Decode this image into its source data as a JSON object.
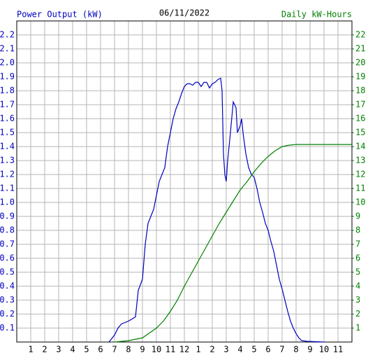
{
  "chart_data": {
    "type": "line",
    "title": "06/11/2022",
    "y_label": "Power Output (kW)",
    "y2_label": "Daily kW-Hours",
    "xlim": [
      0,
      24
    ],
    "xticks": [
      1,
      2,
      3,
      4,
      5,
      6,
      7,
      8,
      9,
      10,
      11,
      12,
      {
        "value": 13,
        "label": "1"
      },
      {
        "value": 14,
        "label": "2"
      },
      {
        "value": 15,
        "label": "3"
      },
      {
        "value": 16,
        "label": "4"
      },
      {
        "value": 17,
        "label": "5"
      },
      {
        "value": 18,
        "label": "6"
      },
      {
        "value": 19,
        "label": "7"
      },
      {
        "value": 20,
        "label": "8"
      },
      {
        "value": 21,
        "label": "9"
      },
      {
        "value": 22,
        "label": "10"
      },
      {
        "value": 23,
        "label": "11"
      }
    ],
    "ylim": [
      0,
      2.3
    ],
    "yticks": [
      0.1,
      0.2,
      0.3,
      0.4,
      0.5,
      0.6,
      0.7,
      0.8,
      0.9,
      {
        "value": 1,
        "label": "1.0"
      },
      1.1,
      1.2,
      1.3,
      1.4,
      1.5,
      1.6,
      1.7,
      1.8,
      1.9,
      {
        "value": 2,
        "label": "2.0"
      },
      2.1,
      2.2
    ],
    "y2lim": [
      0,
      23
    ],
    "y2ticks": [
      1,
      2,
      3,
      4,
      5,
      6,
      7,
      8,
      9,
      10,
      11,
      12,
      13,
      14,
      15,
      16,
      17,
      18,
      19,
      20,
      21,
      22
    ],
    "grid": true,
    "series": [
      {
        "name": "Power Output (kW)",
        "color": "#0000c0",
        "x": [
          6.6,
          7,
          7.25,
          7.5,
          8,
          8.5,
          8.7,
          9,
          9.2,
          9.4,
          9.6,
          9.8,
          10,
          10.2,
          10.4,
          10.6,
          10.8,
          11,
          11.2,
          11.4,
          11.6,
          11.8,
          12,
          12.2,
          12.4,
          12.6,
          12.8,
          13,
          13.2,
          13.4,
          13.6,
          13.8,
          14,
          14.2,
          14.4,
          14.6,
          14.7,
          14.8,
          14.9,
          15,
          15.1,
          15.3,
          15.5,
          15.7,
          15.8,
          16,
          16.1,
          16.2,
          16.4,
          16.6,
          16.8,
          17,
          17.2,
          17.4,
          17.6,
          17.8,
          18,
          18.2,
          18.4,
          18.6,
          18.8,
          19,
          19.2,
          19.4,
          19.6,
          19.8,
          20,
          20.2,
          20.4,
          20.8,
          22
        ],
        "values": [
          0,
          0.05,
          0.1,
          0.13,
          0.15,
          0.18,
          0.37,
          0.45,
          0.7,
          0.85,
          0.9,
          0.95,
          1.05,
          1.15,
          1.2,
          1.25,
          1.4,
          1.5,
          1.6,
          1.67,
          1.72,
          1.78,
          1.83,
          1.85,
          1.85,
          1.84,
          1.86,
          1.86,
          1.83,
          1.86,
          1.86,
          1.82,
          1.85,
          1.86,
          1.88,
          1.89,
          1.8,
          1.35,
          1.2,
          1.15,
          1.3,
          1.5,
          1.72,
          1.68,
          1.5,
          1.55,
          1.6,
          1.5,
          1.35,
          1.25,
          1.2,
          1.18,
          1.1,
          1.0,
          0.93,
          0.85,
          0.8,
          0.72,
          0.65,
          0.55,
          0.45,
          0.38,
          0.3,
          0.22,
          0.15,
          0.1,
          0.06,
          0.03,
          0.01,
          0.005,
          0
        ]
      },
      {
        "name": "Daily kW-Hours",
        "color": "#008000",
        "axis": "y2",
        "x": [
          7,
          8,
          9,
          10,
          10.5,
          11,
          11.5,
          12,
          12.5,
          13,
          13.5,
          14,
          14.5,
          15,
          15.5,
          16,
          16.5,
          17,
          17.5,
          18,
          18.5,
          19,
          19.5,
          20,
          24
        ],
        "values": [
          0,
          0.1,
          0.3,
          1.0,
          1.5,
          2.2,
          3.0,
          4.0,
          4.9,
          5.8,
          6.7,
          7.6,
          8.5,
          9.3,
          10.1,
          10.9,
          11.5,
          12.2,
          12.8,
          13.3,
          13.7,
          14.0,
          14.1,
          14.15,
          14.15
        ]
      }
    ]
  }
}
